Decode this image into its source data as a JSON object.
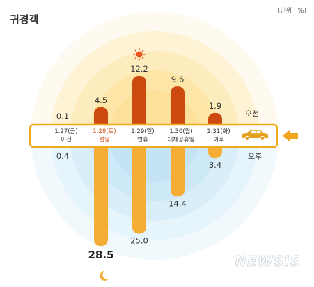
{
  "title": "귀경객",
  "unit_note": "(단위 : %)",
  "label_am": "오전",
  "label_pm": "오후",
  "watermark": "NEWSIS",
  "colors": {
    "am_bar": "#cc4a10",
    "pm_bar": "#f5ad35",
    "band_border": "#f0a81c",
    "highlight_date": "#d9531e",
    "text": "#333333",
    "car": "#e3a01d"
  },
  "icons": {
    "top": "sun-icon",
    "bottom": "moon-icon",
    "band_left": "car-icon",
    "band_right": "arrow-left-icon"
  },
  "chart_data": {
    "type": "bar",
    "categories": [
      {
        "date": "1.27(금)",
        "sub": "이전",
        "highlight": false
      },
      {
        "date": "1.28(토)",
        "sub": "설날",
        "highlight": true
      },
      {
        "date": "1.29(일)",
        "sub": "연휴",
        "highlight": false
      },
      {
        "date": "1.30(월)",
        "sub": "대체공휴일",
        "highlight": false
      },
      {
        "date": "1.31(화)",
        "sub": "이후",
        "highlight": false
      }
    ],
    "series": [
      {
        "name": "오전",
        "values": [
          0.1,
          4.5,
          12.2,
          9.6,
          1.9
        ]
      },
      {
        "name": "오후",
        "values": [
          0.4,
          28.5,
          25.0,
          14.4,
          3.4
        ]
      }
    ],
    "value_labels_am": [
      "0.1",
      "4.5",
      "12.2",
      "9.6",
      "1.9"
    ],
    "value_labels_pm": [
      "0.4",
      "28.5",
      "25.0",
      "14.4",
      "3.4"
    ]
  }
}
